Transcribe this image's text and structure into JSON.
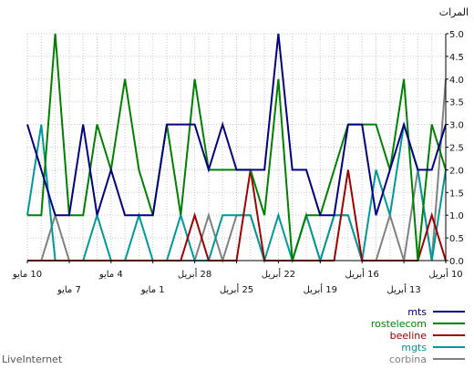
{
  "chart_data": {
    "type": "line",
    "title": "",
    "ylabel": "المرات",
    "xlabel": "",
    "ylim": [
      0,
      5
    ],
    "y_ticks": [
      "0.0",
      "0.5",
      "1.0",
      "1.5",
      "2.0",
      "2.5",
      "3.0",
      "3.5",
      "4.0",
      "4.5",
      "5.0"
    ],
    "x_reversed": true,
    "x": [
      "10 أبريل",
      "11 أبريل",
      "12 أبريل",
      "13 أبريل",
      "14 أبريل",
      "15 أبريل",
      "16 أبريل",
      "17 أبريل",
      "18 أبريل",
      "19 أبريل",
      "20 أبريل",
      "21 أبريل",
      "22 أبريل",
      "23 أبريل",
      "24 أبريل",
      "25 أبريل",
      "26 أبريل",
      "27 أبريل",
      "28 أبريل",
      "29 أبريل",
      "30 أبريل",
      "1 مايو",
      "2 مايو",
      "3 مايو",
      "4 مايو",
      "5 مايو",
      "6 مايو",
      "7 مايو",
      "8 مايو",
      "9 مايو",
      "10 مايو"
    ],
    "x_tick_labels": [
      {
        "index": 0,
        "label": "10 أبريل",
        "row": 1
      },
      {
        "index": 3,
        "label": "13 أبريل",
        "row": 2
      },
      {
        "index": 6,
        "label": "16 أبريل",
        "row": 1
      },
      {
        "index": 9,
        "label": "19 أبريل",
        "row": 2
      },
      {
        "index": 12,
        "label": "22 أبريل",
        "row": 1
      },
      {
        "index": 15,
        "label": "25 أبريل",
        "row": 2
      },
      {
        "index": 18,
        "label": "28 أبريل",
        "row": 1
      },
      {
        "index": 21,
        "label": "1 مايو",
        "row": 2
      },
      {
        "index": 24,
        "label": "4 مايو",
        "row": 1
      },
      {
        "index": 27,
        "label": "7 مايو",
        "row": 2
      },
      {
        "index": 30,
        "label": "10 مايو",
        "row": 1
      }
    ],
    "grid": true,
    "legend_position": "bottom-right",
    "series": [
      {
        "name": "mts",
        "color": "#000080",
        "values": [
          3,
          2,
          2,
          3,
          2,
          1,
          3,
          3,
          1,
          1,
          2,
          2,
          5,
          2,
          2,
          2,
          3,
          2,
          3,
          3,
          3,
          1,
          1,
          1,
          2,
          1,
          3,
          1,
          1,
          2,
          3
        ]
      },
      {
        "name": "rostelecom",
        "color": "#008000",
        "values": [
          2,
          3,
          0,
          4,
          2,
          3,
          3,
          3,
          2,
          1,
          1,
          0,
          4,
          1,
          2,
          2,
          2,
          2,
          4,
          1,
          3,
          1,
          2,
          4,
          2,
          3,
          1,
          1,
          5,
          1,
          1
        ]
      },
      {
        "name": "beeline",
        "color": "#a00000",
        "values": [
          0,
          1,
          0,
          0,
          0,
          0,
          0,
          2,
          0,
          0,
          0,
          0,
          0,
          0,
          2,
          0,
          0,
          0,
          1,
          0,
          0,
          0,
          0,
          0,
          0,
          0,
          0,
          0,
          0,
          0,
          0
        ]
      },
      {
        "name": "mgts",
        "color": "#009999",
        "values": [
          2,
          0,
          2,
          3,
          1,
          2,
          0,
          1,
          1,
          0,
          1,
          0,
          1,
          0,
          1,
          1,
          1,
          0,
          0,
          1,
          0,
          0,
          1,
          0,
          0,
          1,
          0,
          0,
          0,
          3,
          1
        ]
      },
      {
        "name": "corbina",
        "color": "#808080",
        "values": [
          4,
          0,
          2,
          0,
          1,
          0,
          0,
          1,
          1,
          0,
          1,
          0,
          0,
          0,
          1,
          1,
          0,
          1,
          0,
          0,
          0,
          0,
          0,
          0,
          0,
          0,
          0,
          0,
          1,
          0,
          0
        ]
      }
    ]
  },
  "footer": {
    "brand": "LiveInternet"
  }
}
